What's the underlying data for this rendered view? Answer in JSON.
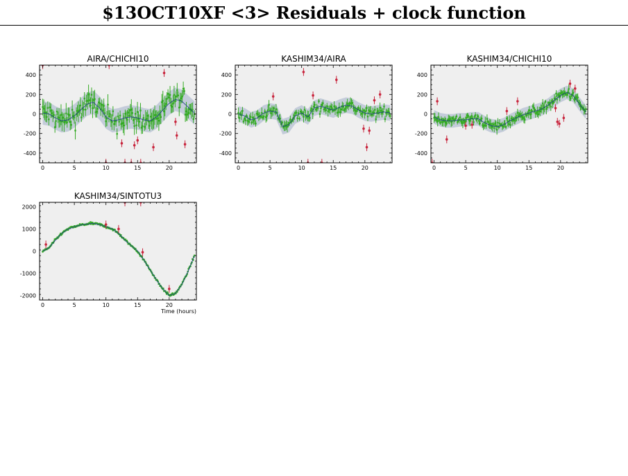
{
  "page": {
    "title": "$13OCT10XF <3> Residuals + clock function"
  },
  "colors": {
    "background": "#efefef",
    "band": "#c4ccda",
    "good": "#33aa22",
    "flagged": "#c8243c",
    "model": "#1f3a8a"
  },
  "chart_data": [
    {
      "type": "scatter",
      "title": "AIRA/CHICHI10",
      "xlabel": "",
      "xlim": [
        -0.5,
        24.3
      ],
      "ylim": [
        -500,
        500
      ],
      "xticks": [
        0,
        5,
        10,
        15,
        20
      ],
      "yticks": [
        -400,
        -200,
        0,
        200,
        400
      ],
      "model_curve": {
        "x": [
          0,
          1,
          2,
          3,
          4,
          5,
          6,
          7,
          8,
          9,
          10,
          11,
          12,
          13,
          14,
          15,
          16,
          17,
          18,
          19,
          20,
          21,
          22,
          23,
          24
        ],
        "y": [
          10,
          0,
          -40,
          -70,
          -60,
          -20,
          40,
          100,
          120,
          60,
          -30,
          -70,
          -60,
          -40,
          -30,
          -40,
          -60,
          -70,
          -30,
          40,
          110,
          150,
          130,
          70,
          10
        ]
      },
      "band_half_width": 120,
      "good_points": {
        "n": 150,
        "scatter": 100,
        "err": 90
      },
      "flagged_points": [
        {
          "x": 0,
          "y": 500
        },
        {
          "x": 10,
          "y": -500
        },
        {
          "x": 10.5,
          "y": 500
        },
        {
          "x": 12.5,
          "y": -300
        },
        {
          "x": 13,
          "y": -500
        },
        {
          "x": 14,
          "y": -500
        },
        {
          "x": 14.5,
          "y": -320
        },
        {
          "x": 15,
          "y": -270
        },
        {
          "x": 15.5,
          "y": -500
        },
        {
          "x": 17.5,
          "y": -340
        },
        {
          "x": 19.2,
          "y": 420
        },
        {
          "x": 21.2,
          "y": -220
        },
        {
          "x": 22.5,
          "y": -310
        },
        {
          "x": 21,
          "y": -80
        }
      ]
    },
    {
      "type": "scatter",
      "title": "KASHIM34/AIRA",
      "xlabel": "",
      "xlim": [
        -0.5,
        24.3
      ],
      "ylim": [
        -500,
        500
      ],
      "xticks": [
        0,
        5,
        10,
        15,
        20
      ],
      "yticks": [
        -400,
        -200,
        0,
        200,
        400
      ],
      "model_curve": {
        "x": [
          0,
          1,
          2,
          3,
          4,
          5,
          6,
          7,
          8,
          9,
          10,
          11,
          12,
          13,
          14,
          15,
          16,
          17,
          18,
          19,
          20,
          21,
          22,
          23,
          24
        ],
        "y": [
          0,
          -20,
          -60,
          -40,
          10,
          30,
          20,
          -130,
          -110,
          -20,
          10,
          -30,
          60,
          80,
          60,
          40,
          70,
          90,
          80,
          40,
          10,
          0,
          10,
          20,
          10
        ]
      },
      "band_half_width": 80,
      "good_points": {
        "n": 150,
        "scatter": 45,
        "err": 50
      },
      "flagged_points": [
        {
          "x": 5.5,
          "y": 180
        },
        {
          "x": 10.3,
          "y": 430
        },
        {
          "x": 11,
          "y": -500
        },
        {
          "x": 11.8,
          "y": 190
        },
        {
          "x": 13.2,
          "y": -500
        },
        {
          "x": 15.5,
          "y": 350
        },
        {
          "x": 19.8,
          "y": -150
        },
        {
          "x": 20.3,
          "y": -340
        },
        {
          "x": 20.7,
          "y": -170
        },
        {
          "x": 21.5,
          "y": 140
        },
        {
          "x": 22.4,
          "y": 200
        }
      ]
    },
    {
      "type": "scatter",
      "title": "KASHIM34/CHICHI10",
      "xlabel": "",
      "xlim": [
        -0.5,
        24.3
      ],
      "ylim": [
        -500,
        500
      ],
      "xticks": [
        0,
        5,
        10,
        15,
        20
      ],
      "yticks": [
        -400,
        -200,
        0,
        200,
        400
      ],
      "model_curve": {
        "x": [
          0,
          1,
          2,
          3,
          4,
          5,
          6,
          7,
          8,
          9,
          10,
          11,
          12,
          13,
          14,
          15,
          16,
          17,
          18,
          19,
          20,
          21,
          22,
          23,
          24
        ],
        "y": [
          -30,
          -60,
          -70,
          -70,
          -60,
          -60,
          -50,
          -50,
          -90,
          -120,
          -130,
          -110,
          -70,
          -40,
          -10,
          10,
          30,
          50,
          90,
          140,
          190,
          220,
          190,
          100,
          20
        ]
      },
      "band_half_width": 70,
      "good_points": {
        "n": 170,
        "scatter": 40,
        "err": 45
      },
      "flagged_points": [
        {
          "x": -0.3,
          "y": -500
        },
        {
          "x": 0.5,
          "y": 130
        },
        {
          "x": 2,
          "y": -260
        },
        {
          "x": 5,
          "y": -120
        },
        {
          "x": 6,
          "y": -110
        },
        {
          "x": 11.5,
          "y": 30
        },
        {
          "x": 13.2,
          "y": 130
        },
        {
          "x": 19.5,
          "y": -80
        },
        {
          "x": 19.8,
          "y": -100
        },
        {
          "x": 20.5,
          "y": -40
        },
        {
          "x": 21.5,
          "y": 310
        },
        {
          "x": 22.3,
          "y": 260
        },
        {
          "x": 19.2,
          "y": 60
        }
      ]
    },
    {
      "type": "scatter",
      "title": "KASHIM34/SINTOTU3",
      "xlabel": "Time (hours)",
      "xlim": [
        -0.5,
        24.3
      ],
      "ylim": [
        -2200,
        2200
      ],
      "xticks": [
        0,
        5,
        10,
        15,
        20
      ],
      "yticks": [
        -2000,
        -1000,
        0,
        1000,
        2000
      ],
      "model_curve": {
        "x": [
          0,
          1,
          2,
          3,
          4,
          5,
          6,
          7,
          8,
          9,
          10,
          11,
          12,
          13,
          14,
          15,
          16,
          17,
          18,
          19,
          20,
          21,
          22,
          23,
          24
        ],
        "y": [
          0,
          150,
          500,
          800,
          1000,
          1100,
          1180,
          1220,
          1250,
          1200,
          1100,
          1000,
          800,
          500,
          250,
          0,
          -400,
          -850,
          -1300,
          -1700,
          -2000,
          -1900,
          -1500,
          -900,
          -200
        ]
      },
      "band_half_width": 60,
      "good_points": {
        "n": 230,
        "scatter": 45,
        "err": 40
      },
      "flagged_points": [
        {
          "x": 0.5,
          "y": 300
        },
        {
          "x": 10,
          "y": 1200
        },
        {
          "x": 12,
          "y": 1000
        },
        {
          "x": 13,
          "y": 2200
        },
        {
          "x": 15.5,
          "y": 2200
        },
        {
          "x": 15.8,
          "y": -50
        },
        {
          "x": 20,
          "y": -1700
        }
      ]
    }
  ]
}
